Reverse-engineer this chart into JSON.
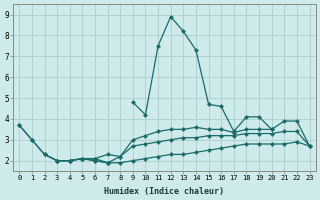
{
  "xlabel": "Humidex (Indice chaleur)",
  "background_color": "#ceeaea",
  "grid_color": "#aacece",
  "line_color": "#1a6b6b",
  "x_values": [
    0,
    1,
    2,
    3,
    4,
    5,
    6,
    7,
    8,
    9,
    10,
    11,
    12,
    13,
    14,
    15,
    16,
    17,
    18,
    19,
    20,
    21,
    22,
    23
  ],
  "line_spike": [
    null,
    null,
    null,
    null,
    null,
    null,
    null,
    null,
    null,
    4.8,
    4.2,
    7.5,
    8.9,
    8.2,
    7.3,
    4.7,
    4.6,
    3.4,
    4.1,
    4.1,
    3.5,
    null,
    null,
    null
  ],
  "line_top": [
    3.7,
    3.0,
    2.3,
    2.0,
    2.0,
    2.1,
    2.0,
    1.9,
    2.2,
    3.0,
    3.2,
    3.4,
    3.5,
    3.5,
    3.6,
    3.5,
    3.5,
    3.35,
    3.5,
    3.5,
    3.5,
    3.9,
    3.9,
    2.7
  ],
  "line_mid": [
    null,
    null,
    2.3,
    2.0,
    2.0,
    2.1,
    2.1,
    2.3,
    2.2,
    2.7,
    2.8,
    2.9,
    3.0,
    3.1,
    3.1,
    3.2,
    3.2,
    3.2,
    3.3,
    3.3,
    3.3,
    3.4,
    3.4,
    2.7
  ],
  "line_bot": [
    null,
    null,
    null,
    2.0,
    2.0,
    2.1,
    2.1,
    1.9,
    1.9,
    2.0,
    2.1,
    2.2,
    2.3,
    2.3,
    2.4,
    2.5,
    2.6,
    2.7,
    2.8,
    2.8,
    2.8,
    2.8,
    2.9,
    2.7
  ],
  "line_short": [
    3.7,
    3.0,
    2.3,
    2.0,
    2.0,
    2.1,
    2.0,
    1.9,
    null,
    null,
    null,
    null,
    null,
    null,
    null,
    null,
    null,
    null,
    null,
    null,
    null,
    null,
    null,
    null
  ],
  "ylim": [
    1.5,
    9.5
  ],
  "xlim": [
    -0.5,
    23.5
  ],
  "yticks": [
    2,
    3,
    4,
    5,
    6,
    7,
    8,
    9
  ],
  "xticks": [
    0,
    1,
    2,
    3,
    4,
    5,
    6,
    7,
    8,
    9,
    10,
    11,
    12,
    13,
    14,
    15,
    16,
    17,
    18,
    19,
    20,
    21,
    22,
    23
  ]
}
